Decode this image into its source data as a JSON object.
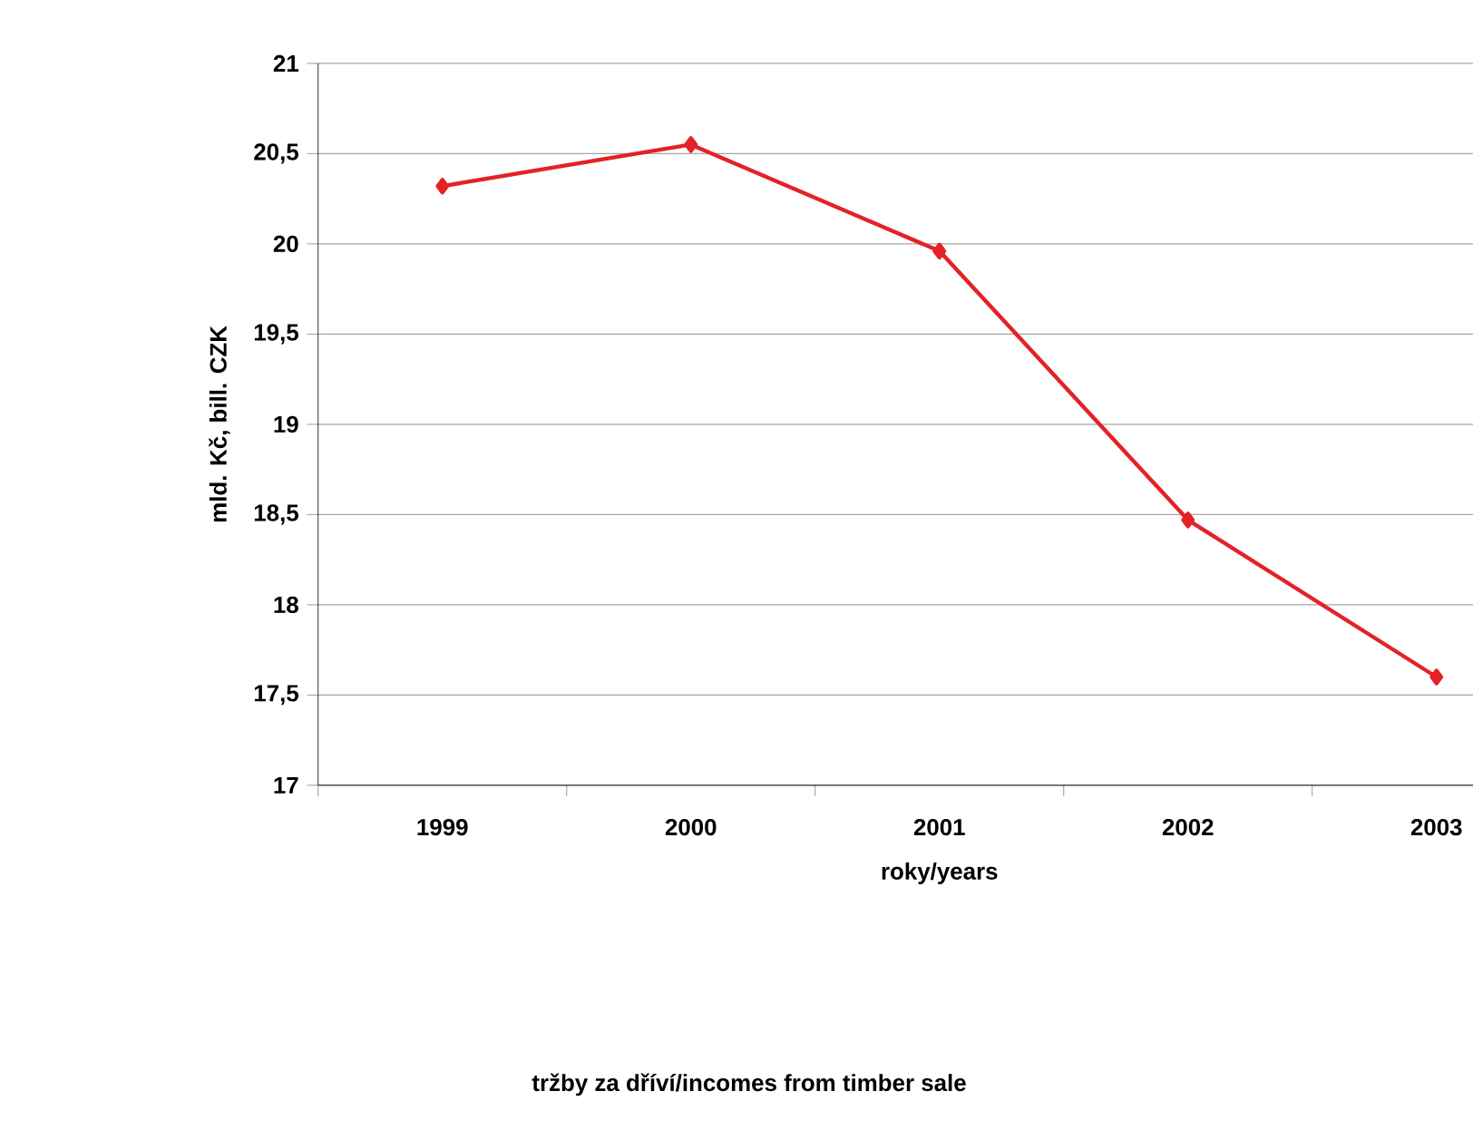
{
  "chart_data": {
    "type": "line",
    "title": "tržby za dříví/incomes from timber sale",
    "xlabel": "roky/years",
    "ylabel": "mld. Kč, bill. CZK",
    "categories": [
      "1999",
      "2000",
      "2001",
      "2002",
      "2003"
    ],
    "series": [
      {
        "color": "#e32227",
        "values": [
          20.32,
          20.55,
          19.96,
          18.47,
          17.6
        ]
      }
    ],
    "ylim": [
      17,
      21
    ],
    "yticks": [
      17,
      {
        "value": 17.5,
        "label": "17,5"
      },
      18,
      {
        "value": 18.5,
        "label": "18,5"
      },
      19,
      {
        "value": 19.5,
        "label": "19,5"
      },
      20,
      {
        "value": 20.5,
        "label": "20,5"
      },
      21
    ],
    "grid": "y",
    "marker": "diamond",
    "line_style": "solid"
  }
}
